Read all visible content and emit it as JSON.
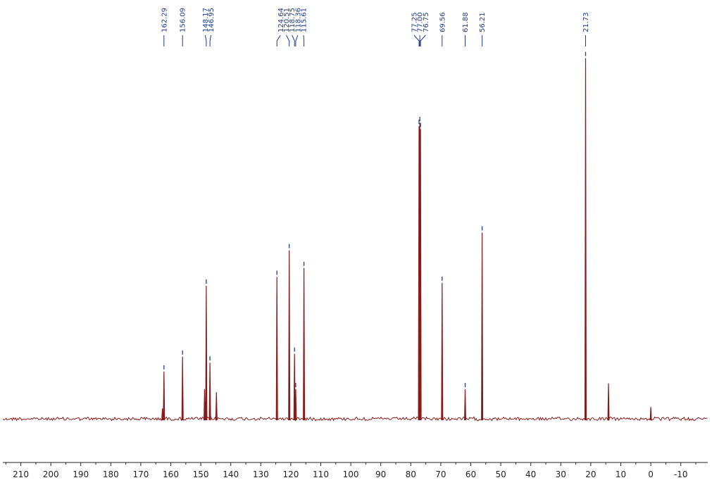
{
  "chart_data": {
    "type": "line",
    "title": "",
    "xlabel": "",
    "ylabel": "",
    "x_reversed": true,
    "xlim": [
      216,
      -19
    ],
    "ylim": [
      -0.05,
      1.25
    ],
    "x_ticks": [
      210,
      200,
      190,
      180,
      170,
      160,
      150,
      140,
      130,
      120,
      110,
      100,
      90,
      80,
      70,
      60,
      50,
      40,
      30,
      20,
      10,
      0,
      -10
    ],
    "x_tick_labels": [
      "210",
      "200",
      "190",
      "180",
      "170",
      "160",
      "150",
      "140",
      "130",
      "120",
      "110",
      "100",
      "90",
      "80",
      "70",
      "60",
      "50",
      "40",
      "30",
      "20",
      "10",
      "0",
      "-10"
    ],
    "grid": false,
    "colors": {
      "spectrum": "#8b1a1a",
      "annotation": "#1f3b8f",
      "axis": "#222222"
    },
    "peak_labels": [
      "162.29",
      "156.09",
      "148.17",
      "146.95",
      "124.64",
      "120.51",
      "118.75",
      "118.36",
      "115.61",
      "77.25",
      "77.00",
      "76.75",
      "69.56",
      "61.88",
      "56.21",
      "21.73"
    ],
    "label_groups": [
      {
        "ppm": [
          162.29
        ]
      },
      {
        "ppm": [
          156.09
        ]
      },
      {
        "ppm": [
          148.17,
          146.95
        ]
      },
      {
        "ppm": [
          124.64,
          120.51,
          118.75,
          118.36,
          115.61
        ]
      },
      {
        "ppm": [
          77.25,
          77.0,
          76.75
        ]
      },
      {
        "ppm": [
          69.56
        ]
      },
      {
        "ppm": [
          61.88
        ]
      },
      {
        "ppm": [
          56.21
        ]
      },
      {
        "ppm": [
          21.73
        ]
      }
    ],
    "peaks": [
      {
        "ppm": 162.8,
        "intensity": 0.035,
        "labeled": false
      },
      {
        "ppm": 162.29,
        "intensity": 0.16,
        "labeled": true
      },
      {
        "ppm": 156.09,
        "intensity": 0.21,
        "labeled": true
      },
      {
        "ppm": 148.75,
        "intensity": 0.1,
        "labeled": false
      },
      {
        "ppm": 148.17,
        "intensity": 0.45,
        "labeled": true
      },
      {
        "ppm": 146.95,
        "intensity": 0.19,
        "labeled": true
      },
      {
        "ppm": 144.8,
        "intensity": 0.09,
        "labeled": false
      },
      {
        "ppm": 124.64,
        "intensity": 0.48,
        "labeled": true
      },
      {
        "ppm": 120.51,
        "intensity": 0.57,
        "labeled": true
      },
      {
        "ppm": 118.75,
        "intensity": 0.22,
        "labeled": true
      },
      {
        "ppm": 118.36,
        "intensity": 0.1,
        "labeled": true
      },
      {
        "ppm": 115.61,
        "intensity": 0.51,
        "labeled": true
      },
      {
        "ppm": 77.25,
        "intensity": 0.99,
        "labeled": true
      },
      {
        "ppm": 77.0,
        "intensity": 1.0,
        "labeled": true
      },
      {
        "ppm": 76.75,
        "intensity": 0.98,
        "labeled": true
      },
      {
        "ppm": 69.56,
        "intensity": 0.46,
        "labeled": true
      },
      {
        "ppm": 61.88,
        "intensity": 0.1,
        "labeled": true
      },
      {
        "ppm": 56.21,
        "intensity": 0.63,
        "labeled": true
      },
      {
        "ppm": 21.73,
        "intensity": 1.22,
        "labeled": true
      },
      {
        "ppm": 14.1,
        "intensity": 0.12,
        "labeled": false
      },
      {
        "ppm": 0.0,
        "intensity": 0.04,
        "labeled": false
      }
    ]
  }
}
